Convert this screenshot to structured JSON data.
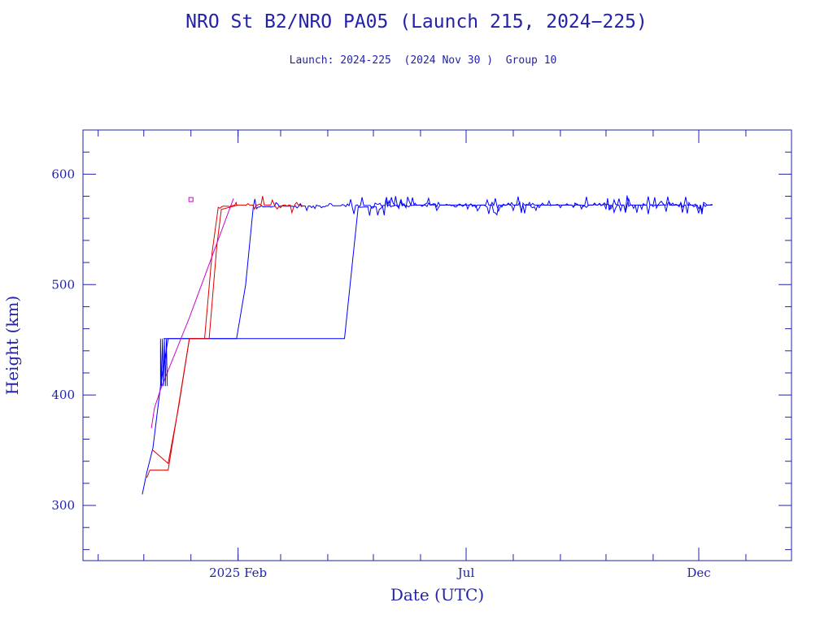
{
  "title": "NRO St B2/NRO PA05 (Launch 215, 2024−225)",
  "subtitle": "Launch: 2024-225  (2024 Nov 30 )  Group 10",
  "chart_data": {
    "type": "line",
    "xlabel": "Date (UTC)",
    "ylabel": "Height (km)",
    "ylim": [
      250,
      640
    ],
    "xlim": [
      "2024-10-22",
      "2026-01-31"
    ],
    "x_ticks": [
      {
        "label": "2025 Feb",
        "date": "2025-02-01"
      },
      {
        "label": "Jul",
        "date": "2025-07-01"
      },
      {
        "label": "Dec",
        "date": "2025-12-01"
      }
    ],
    "y_ticks": [
      300,
      400,
      500,
      600
    ],
    "grid": false,
    "colors": {
      "axis": "#2222aa",
      "series_blue": "#0000ff",
      "series_red": "#dd0000",
      "series_magenta": "#cc00cc"
    },
    "series": [
      {
        "color": "blue",
        "points": [
          [
            "2024-11-30",
            310
          ],
          [
            "2024-12-03",
            330
          ],
          [
            "2024-12-07",
            352
          ],
          [
            "2024-12-12",
            408
          ],
          [
            "2024-12-17",
            451
          ],
          [
            "2025-01-31",
            451
          ],
          [
            "2025-02-06",
            500
          ],
          [
            "2025-02-11",
            570
          ],
          [
            "2025-02-28",
            571
          ],
          [
            "2025-06-01",
            572
          ],
          [
            "2025-09-01",
            572
          ],
          [
            "2025-12-10",
            572
          ]
        ]
      },
      {
        "color": "blue",
        "points": [
          [
            "2024-12-14",
            451
          ],
          [
            "2025-04-12",
            451
          ],
          [
            "2025-04-21",
            570
          ],
          [
            "2025-06-01",
            572
          ],
          [
            "2025-12-10",
            572
          ]
        ]
      },
      {
        "color": "red",
        "points": [
          [
            "2024-12-03",
            325
          ],
          [
            "2024-12-05",
            332
          ],
          [
            "2024-12-17",
            332
          ],
          [
            "2024-12-31",
            451
          ],
          [
            "2025-01-10",
            451
          ],
          [
            "2025-01-15",
            530
          ],
          [
            "2025-01-19",
            570
          ],
          [
            "2025-01-31",
            572
          ],
          [
            "2025-03-15",
            572
          ]
        ]
      },
      {
        "color": "red",
        "points": [
          [
            "2024-12-07",
            350
          ],
          [
            "2024-12-17",
            338
          ],
          [
            "2024-12-24",
            390
          ],
          [
            "2024-12-31",
            451
          ],
          [
            "2025-01-13",
            451
          ],
          [
            "2025-01-18",
            535
          ],
          [
            "2025-01-21",
            568
          ],
          [
            "2025-02-01",
            572
          ]
        ]
      },
      {
        "color": "magenta",
        "points": [
          [
            "2024-12-06",
            370
          ],
          [
            "2024-12-08",
            388
          ],
          [
            "2024-12-12",
            405
          ],
          [
            "2024-12-31",
            470
          ],
          [
            "2025-01-29",
            578
          ]
        ]
      }
    ],
    "isolated_points": [
      {
        "color": "magenta",
        "date": "2025-01-01",
        "value": 577
      }
    ]
  }
}
